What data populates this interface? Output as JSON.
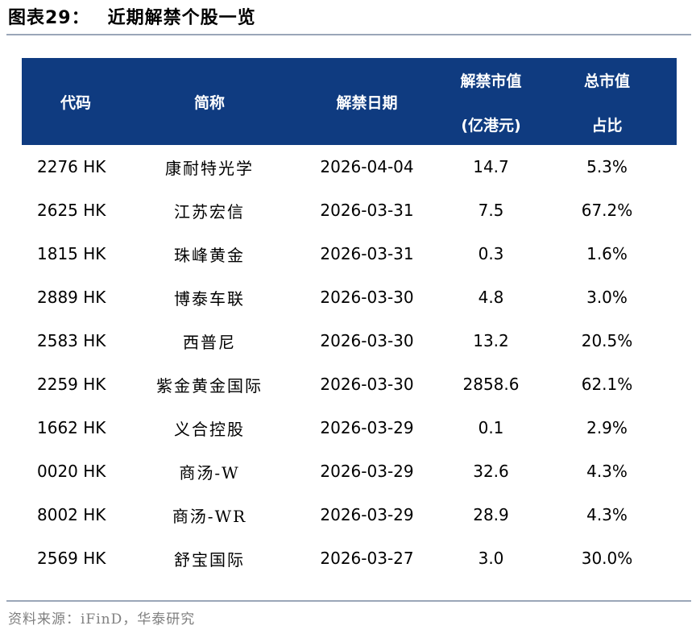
{
  "figure": {
    "label": "图表29：",
    "title": "近期解禁个股一览",
    "source": "资料来源：iFinD，华泰研究"
  },
  "table": {
    "headers": {
      "code": "代码",
      "name": "简称",
      "date": "解禁日期",
      "value_line1": "解禁市值",
      "value_line2": "(亿港元)",
      "ratio_line1": "总市值",
      "ratio_line2": "占比"
    },
    "rows": [
      {
        "code": "2276 HK",
        "name": "康耐特光学",
        "date": "2026-04-04",
        "value": "14.7",
        "ratio": "5.3%"
      },
      {
        "code": "2625 HK",
        "name": "江苏宏信",
        "date": "2026-03-31",
        "value": "7.5",
        "ratio": "67.2%"
      },
      {
        "code": "1815 HK",
        "name": "珠峰黄金",
        "date": "2026-03-31",
        "value": "0.3",
        "ratio": "1.6%"
      },
      {
        "code": "2889 HK",
        "name": "博泰车联",
        "date": "2026-03-30",
        "value": "4.8",
        "ratio": "3.0%"
      },
      {
        "code": "2583 HK",
        "name": "西普尼",
        "date": "2026-03-30",
        "value": "13.2",
        "ratio": "20.5%"
      },
      {
        "code": "2259 HK",
        "name": "紫金黄金国际",
        "date": "2026-03-30",
        "value": "2858.6",
        "ratio": "62.1%"
      },
      {
        "code": "1662 HK",
        "name": "义合控股",
        "date": "2026-03-29",
        "value": "0.1",
        "ratio": "2.9%"
      },
      {
        "code": "0020 HK",
        "name": "商汤-W",
        "date": "2026-03-29",
        "value": "32.6",
        "ratio": "4.3%"
      },
      {
        "code": "8002 HK",
        "name": "商汤-WR",
        "date": "2026-03-29",
        "value": "28.9",
        "ratio": "4.3%"
      },
      {
        "code": "2569 HK",
        "name": "舒宝国际",
        "date": "2026-03-27",
        "value": "3.0",
        "ratio": "30.0%"
      }
    ]
  }
}
